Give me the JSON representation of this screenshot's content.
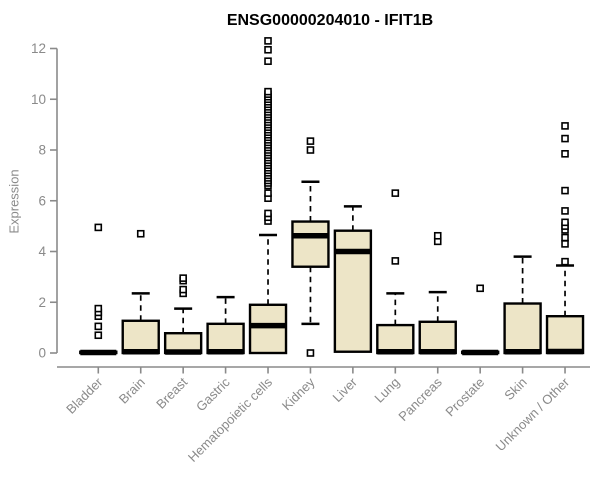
{
  "title": "ENSG00000204010 - IFIT1B",
  "y_axis": {
    "label": "Expression",
    "ticks": [
      0,
      2,
      4,
      6,
      8,
      10,
      12
    ]
  },
  "colors": {
    "background": "#ffffff",
    "axis": "#8a8a8a",
    "axis_text": "#8a8a8a",
    "title_text": "#000000",
    "box_fill": "#ede5c7",
    "box_border": "#000000",
    "median": "#000000",
    "outlier": "#000000"
  },
  "chart_data": {
    "type": "boxplot",
    "title": "ENSG00000204010 - IFIT1B",
    "xlabel": "",
    "ylabel": "Expression",
    "ylim": [
      0,
      12
    ],
    "yticks": [
      0,
      2,
      4,
      6,
      8,
      10,
      12
    ],
    "grid": false,
    "categories": [
      "Bladder",
      "Brain",
      "Breast",
      "Gastric",
      "Hematopoietic cells",
      "Kidney",
      "Liver",
      "Lung",
      "Pancreas",
      "Prostate",
      "Skin",
      "Unknown / Other"
    ],
    "series": [
      {
        "name": "Bladder",
        "low": 0,
        "q1": 0,
        "median": 0.02,
        "q3": 0.05,
        "high": 0.05,
        "outliers": [
          0.7,
          1.05,
          1.45,
          1.6,
          1.75,
          4.95
        ]
      },
      {
        "name": "Brain",
        "low": 0,
        "q1": 0,
        "median": 0.05,
        "q3": 1.27,
        "high": 2.35,
        "outliers": [
          4.7
        ]
      },
      {
        "name": "Breast",
        "low": 0,
        "q1": 0,
        "median": 0.04,
        "q3": 0.78,
        "high": 1.75,
        "outliers": [
          2.35,
          2.5,
          2.85,
          2.95
        ]
      },
      {
        "name": "Gastric",
        "low": 0,
        "q1": 0,
        "median": 0.05,
        "q3": 1.15,
        "high": 2.2,
        "outliers": []
      },
      {
        "name": "Hematopoietic cells",
        "low": 0,
        "q1": 0,
        "median": 1.08,
        "q3": 1.9,
        "high": 4.65,
        "outliers": [
          5.2,
          5.35,
          5.5,
          6.1,
          6.3,
          6.6,
          6.7,
          6.8,
          6.9,
          7.0,
          7.1,
          7.2,
          7.3,
          7.4,
          7.5,
          7.6,
          7.7,
          7.8,
          7.9,
          8.0,
          8.1,
          8.2,
          8.3,
          8.4,
          8.5,
          8.6,
          8.7,
          8.8,
          8.9,
          9.0,
          9.1,
          9.2,
          9.3,
          9.4,
          9.5,
          9.6,
          9.7,
          9.8,
          9.9,
          10.0,
          10.1,
          10.2,
          10.3,
          11.5,
          11.95,
          12.3
        ]
      },
      {
        "name": "Kidney",
        "low": 1.15,
        "q1": 3.4,
        "median": 4.62,
        "q3": 5.18,
        "high": 6.75,
        "outliers": [
          0.0,
          8.0,
          8.35
        ]
      },
      {
        "name": "Liver",
        "low": 0.05,
        "q1": 0.05,
        "median": 4.0,
        "q3": 4.82,
        "high": 5.78,
        "outliers": []
      },
      {
        "name": "Lung",
        "low": 0,
        "q1": 0,
        "median": 0.05,
        "q3": 1.1,
        "high": 2.35,
        "outliers": [
          3.63,
          6.3
        ]
      },
      {
        "name": "Pancreas",
        "low": 0,
        "q1": 0,
        "median": 0.05,
        "q3": 1.23,
        "high": 2.4,
        "outliers": [
          4.4,
          4.62
        ]
      },
      {
        "name": "Prostate",
        "low": 0,
        "q1": 0,
        "median": 0.02,
        "q3": 0.05,
        "high": 0.05,
        "outliers": [
          2.55
        ]
      },
      {
        "name": "Skin",
        "low": 0,
        "q1": 0,
        "median": 0.05,
        "q3": 1.95,
        "high": 3.8,
        "outliers": []
      },
      {
        "name": "Unknown / Other",
        "low": 0,
        "q1": 0,
        "median": 0.06,
        "q3": 1.45,
        "high": 3.45,
        "outliers": [
          3.6,
          4.3,
          4.55,
          4.85,
          5.0,
          5.15,
          5.6,
          6.4,
          7.85,
          8.45,
          8.95
        ]
      }
    ]
  }
}
